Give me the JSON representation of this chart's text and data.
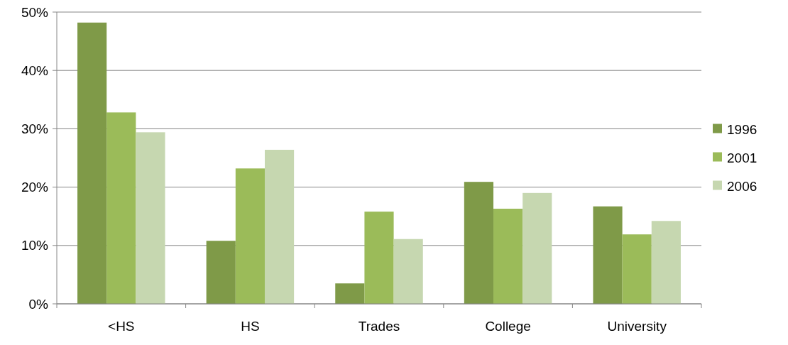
{
  "chart_data": {
    "type": "bar",
    "categories": [
      "<HS",
      "HS",
      "Trades",
      "College",
      "University"
    ],
    "series": [
      {
        "name": "1996",
        "color": "#7f9a48",
        "values": [
          48.2,
          10.8,
          3.5,
          20.9,
          16.7
        ]
      },
      {
        "name": "2001",
        "color": "#9bbb59",
        "values": [
          32.8,
          23.2,
          15.8,
          16.3,
          11.9
        ]
      },
      {
        "name": "2006",
        "color": "#c6d7b0",
        "values": [
          29.4,
          26.4,
          11.1,
          19.0,
          14.2
        ]
      }
    ],
    "ylim": [
      0,
      50
    ],
    "yticks": [
      {
        "value": 0,
        "label": "0%"
      },
      {
        "value": 10,
        "label": "10%"
      },
      {
        "value": 20,
        "label": "20%"
      },
      {
        "value": 30,
        "label": "30%"
      },
      {
        "value": 40,
        "label": "40%"
      },
      {
        "value": 50,
        "label": "50%"
      }
    ],
    "grid": "y",
    "legend": "right"
  }
}
